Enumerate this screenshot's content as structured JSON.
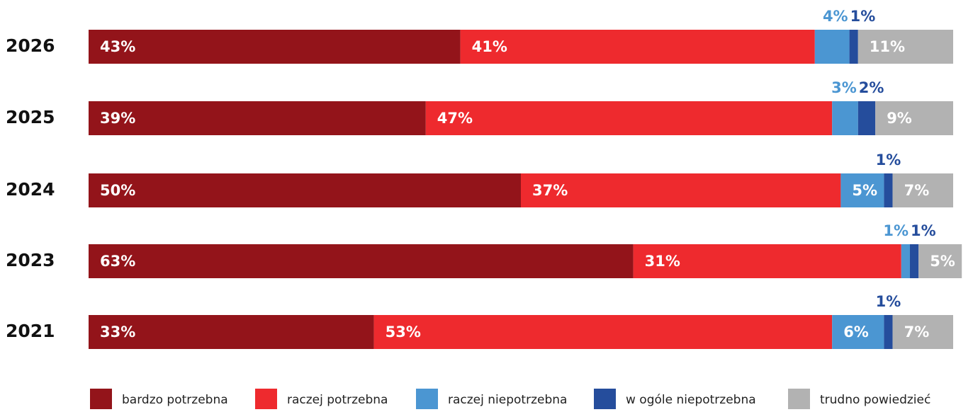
{
  "chart_data": {
    "type": "stacked-bar-horizontal",
    "categories": [
      "2026",
      "2025",
      "2024",
      "2023",
      "2021"
    ],
    "xlim": [
      0,
      100
    ],
    "legend": "bottom",
    "series": [
      {
        "name": "bardzo potrzebna",
        "color": "#93141a",
        "values": [
          43,
          39,
          50,
          63,
          33
        ],
        "value_labels": [
          "43%",
          "39%",
          "50%",
          "63%",
          "33%"
        ]
      },
      {
        "name": "raczej potrzebna",
        "color": "#ee2a2e",
        "values": [
          41,
          47,
          37,
          31,
          53
        ],
        "value_labels": [
          "41%",
          "47%",
          "37%",
          "31%",
          "53%"
        ]
      },
      {
        "name": "raczej niepotrzebna",
        "color": "#4b96d2",
        "values": [
          4,
          3,
          5,
          1,
          6
        ],
        "value_labels": [
          "4%",
          "3%",
          "5%",
          "1%",
          "6%"
        ]
      },
      {
        "name": "w ogóle niepotrzebna",
        "color": "#254d9c",
        "values": [
          1,
          2,
          1,
          1,
          1
        ],
        "value_labels": [
          "1%",
          "2%",
          "1%",
          "1%",
          "1%"
        ]
      },
      {
        "name": "trudno powiedzieć",
        "color": "#b2b2b2",
        "values": [
          11,
          9,
          7,
          5,
          7
        ],
        "value_labels": [
          "11%",
          "9%",
          "7%",
          "5%",
          "7%"
        ]
      }
    ]
  }
}
